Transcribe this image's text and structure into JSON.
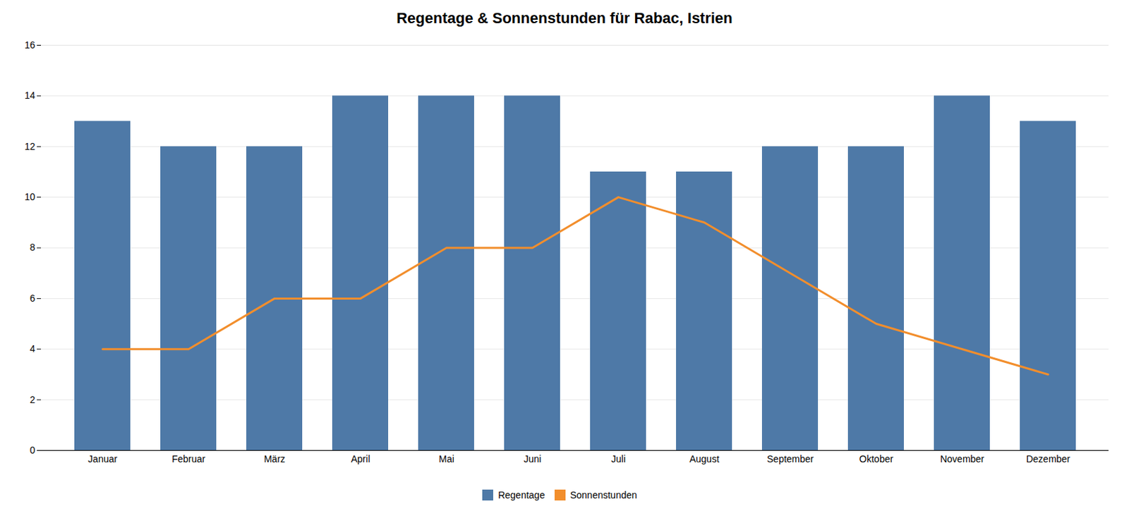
{
  "chart_data": {
    "type": "bar",
    "title": "Regentage & Sonnenstunden für Rabac, Istrien",
    "categories": [
      "Januar",
      "Februar",
      "März",
      "April",
      "Mai",
      "Juni",
      "Juli",
      "August",
      "September",
      "Oktober",
      "November",
      "Dezember"
    ],
    "series": [
      {
        "name": "Regentage",
        "type": "bar",
        "values": [
          13,
          12,
          12,
          14,
          14,
          14,
          11,
          11,
          12,
          12,
          14,
          13
        ]
      },
      {
        "name": "Sonnenstunden",
        "type": "line",
        "values": [
          4,
          4,
          6,
          6,
          8,
          8,
          10,
          9,
          7,
          5,
          4,
          3
        ]
      }
    ],
    "ylim": [
      0,
      16
    ],
    "yticks": [
      0,
      2,
      4,
      6,
      8,
      10,
      12,
      14,
      16
    ],
    "grid": true,
    "legend": "bottom"
  }
}
